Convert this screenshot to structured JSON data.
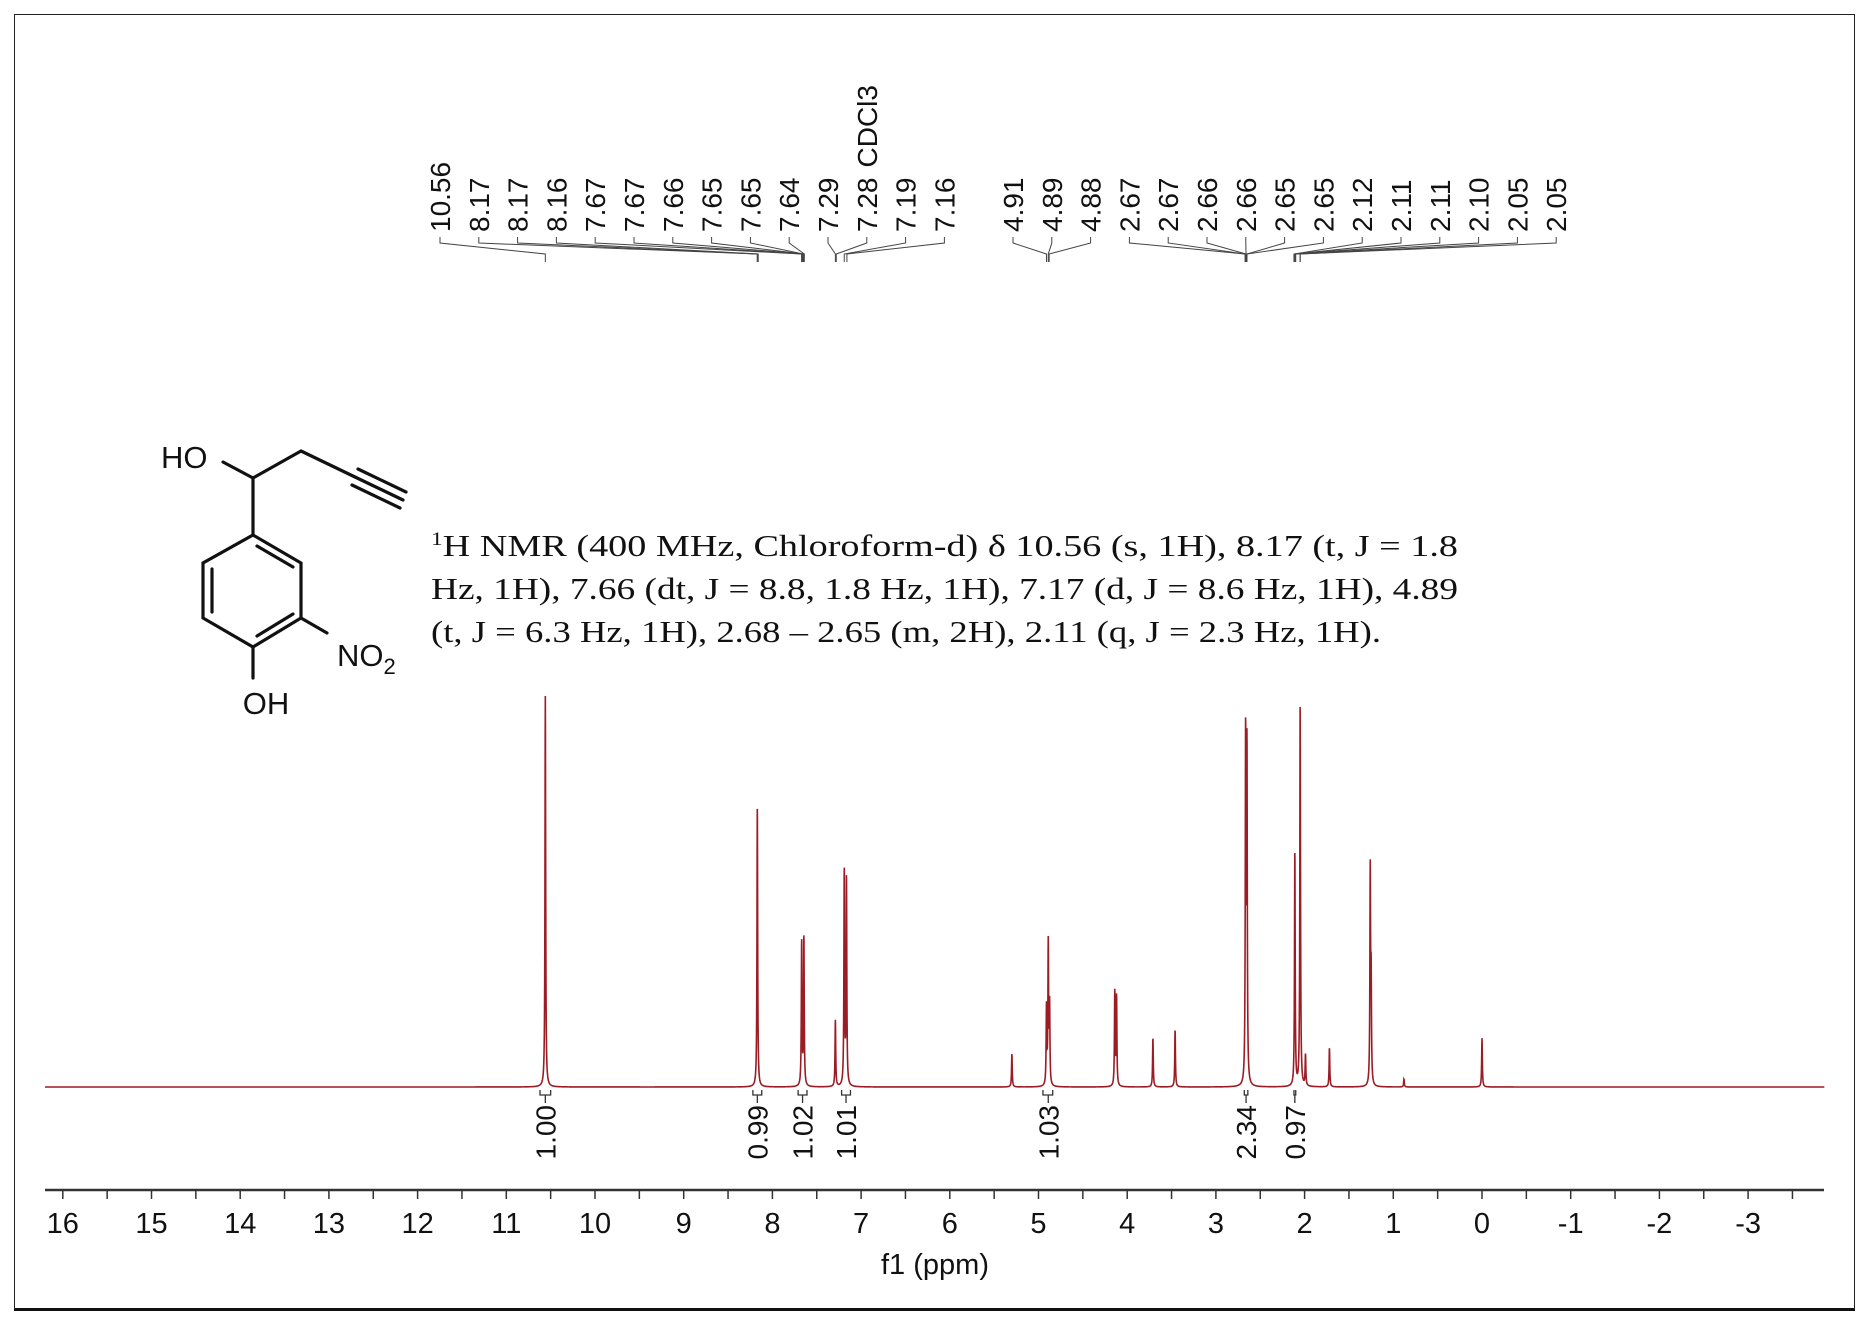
{
  "chart_data": {
    "type": "line",
    "title": "",
    "xlabel": "f1 (ppm)",
    "ylabel": "",
    "xlim": [
      16.2,
      -3.86
    ],
    "x_ticks": [
      16,
      15,
      14,
      13,
      12,
      11,
      10,
      9,
      8,
      7,
      6,
      5,
      4,
      3,
      2,
      1,
      0,
      -1,
      -2,
      -3
    ],
    "grid": false,
    "series_color": "#9b1c24",
    "peak_labels_left": [
      "10.56",
      "8.17",
      "8.17",
      "8.16",
      "7.67",
      "7.67",
      "7.66",
      "7.65",
      "7.65",
      "7.64",
      "7.29",
      "7.28",
      "7.19",
      "7.16"
    ],
    "peak_labels_right": [
      "4.91",
      "4.89",
      "4.88",
      "2.67",
      "2.67",
      "2.66",
      "2.66",
      "2.65",
      "2.65",
      "2.12",
      "2.11",
      "2.11",
      "2.10",
      "2.05",
      "2.05"
    ],
    "solvent_label": "CDCl3",
    "integrals": [
      {
        "ppm": 10.56,
        "from": 10.62,
        "to": 10.5,
        "value": "1.00"
      },
      {
        "ppm": 8.17,
        "from": 8.22,
        "to": 8.12,
        "value": "0.99"
      },
      {
        "ppm": 7.66,
        "from": 7.71,
        "to": 7.61,
        "value": "1.02"
      },
      {
        "ppm": 7.17,
        "from": 7.22,
        "to": 7.12,
        "value": "1.01"
      },
      {
        "ppm": 4.89,
        "from": 4.95,
        "to": 4.84,
        "value": "1.03"
      },
      {
        "ppm": 2.66,
        "from": 2.68,
        "to": 2.64,
        "value": "2.34"
      },
      {
        "ppm": 2.11,
        "from": 2.12,
        "to": 2.1,
        "value": "0.97"
      }
    ],
    "peaks": [
      {
        "ppm": 10.56,
        "intensity": 1.0
      },
      {
        "ppm": 8.17,
        "intensity": 0.72
      },
      {
        "ppm": 7.67,
        "intensity": 0.37
      },
      {
        "ppm": 7.645,
        "intensity": 0.38
      },
      {
        "ppm": 7.29,
        "intensity": 0.17
      },
      {
        "ppm": 7.19,
        "intensity": 0.55
      },
      {
        "ppm": 7.165,
        "intensity": 0.53
      },
      {
        "ppm": 5.3,
        "intensity": 0.085
      },
      {
        "ppm": 4.91,
        "intensity": 0.2
      },
      {
        "ppm": 4.89,
        "intensity": 0.36
      },
      {
        "ppm": 4.875,
        "intensity": 0.2
      },
      {
        "ppm": 4.14,
        "intensity": 0.24
      },
      {
        "ppm": 4.12,
        "intensity": 0.23
      },
      {
        "ppm": 3.71,
        "intensity": 0.125
      },
      {
        "ppm": 3.46,
        "intensity": 0.146
      },
      {
        "ppm": 2.665,
        "intensity": 0.89
      },
      {
        "ppm": 2.65,
        "intensity": 0.85
      },
      {
        "ppm": 2.11,
        "intensity": 0.6
      },
      {
        "ppm": 2.05,
        "intensity": 0.98
      },
      {
        "ppm": 1.99,
        "intensity": 0.08
      },
      {
        "ppm": 1.72,
        "intensity": 0.1
      },
      {
        "ppm": 1.26,
        "intensity": 0.54
      },
      {
        "ppm": 1.25,
        "intensity": 0.25
      },
      {
        "ppm": 0.88,
        "intensity": 0.02
      },
      {
        "ppm": 0.0,
        "intensity": 0.125
      }
    ]
  },
  "compound": {
    "ho_label": "HO",
    "oh_label": "OH",
    "no2_label": "NO",
    "no2_subscript": "2"
  },
  "description": {
    "superscript": "1",
    "lines": [
      "H NMR (400 MHz, Chloroform-d) δ 10.56 (s, 1H), 8.17 (t, J = 1.8",
      "Hz, 1H), 7.66 (dt, J = 8.8, 1.8 Hz, 1H), 7.17 (d, J = 8.6 Hz, 1H), 4.89",
      "(t, J = 6.3 Hz, 1H), 2.68 – 2.65 (m, 2H), 2.11 (q, J = 2.3 Hz, 1H)."
    ]
  }
}
